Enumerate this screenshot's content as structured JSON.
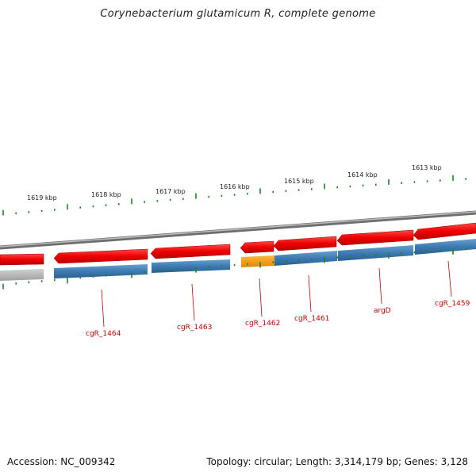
{
  "title": "Corynebacterium glutamicum R, complete genome",
  "footer": {
    "accession": "Accession: NC_009342",
    "summary": "Topology: circular; Length: 3,314,179 bp; Genes: 3,128"
  },
  "colors": {
    "tick_green": "#1a8a1a",
    "gene_red": "#e60000",
    "gene_red_dark": "#b00000",
    "gene_blue": "#3f7fb8",
    "gene_blue_dark": "#2a5f8f",
    "gene_orange": "#f59a10",
    "gene_grey": "#b5b5b5",
    "backbone": "#8a8a8a",
    "label_red": "#cc0000"
  },
  "scale_labels": [
    "1619 kbp",
    "1618 kbp",
    "1617 kbp",
    "1616 kbp",
    "1615 kbp",
    "1614 kbp",
    "1613 kbp"
  ],
  "gene_labels": [
    "cgR_1464",
    "cgR_1463",
    "cgR_1462",
    "cgR_1461",
    "argD",
    "cgR_1459"
  ]
}
